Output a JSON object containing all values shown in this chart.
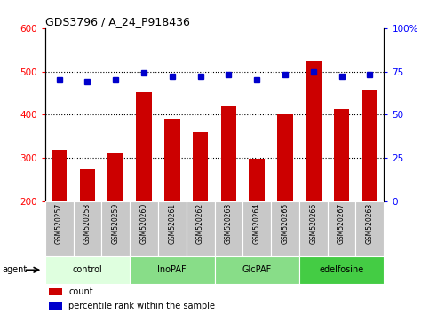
{
  "title": "GDS3796 / A_24_P918436",
  "samples": [
    "GSM520257",
    "GSM520258",
    "GSM520259",
    "GSM520260",
    "GSM520261",
    "GSM520262",
    "GSM520263",
    "GSM520264",
    "GSM520265",
    "GSM520266",
    "GSM520267",
    "GSM520268"
  ],
  "counts": [
    318,
    276,
    310,
    452,
    390,
    360,
    422,
    298,
    402,
    524,
    412,
    456
  ],
  "percentiles": [
    70,
    69,
    70,
    74,
    72,
    72,
    73,
    70,
    73,
    75,
    72,
    73
  ],
  "groups": [
    {
      "label": "control",
      "indices": [
        0,
        1,
        2
      ],
      "color": "#dfffdf"
    },
    {
      "label": "InoPAF",
      "indices": [
        3,
        4,
        5
      ],
      "color": "#88dd88"
    },
    {
      "label": "GlcPAF",
      "indices": [
        6,
        7,
        8
      ],
      "color": "#88dd88"
    },
    {
      "label": "edelfosine",
      "indices": [
        9,
        10,
        11
      ],
      "color": "#44cc44"
    }
  ],
  "bar_color": "#cc0000",
  "dot_color": "#0000cc",
  "ylim_left": [
    200,
    600
  ],
  "ylim_right": [
    0,
    100
  ],
  "yticks_left": [
    200,
    300,
    400,
    500,
    600
  ],
  "yticks_right": [
    0,
    25,
    50,
    75,
    100
  ],
  "grid_values": [
    300,
    400,
    500
  ],
  "legend_count_label": "count",
  "legend_pct_label": "percentile rank within the sample",
  "agent_label": "agent",
  "sample_box_color": "#c8c8c8",
  "background_color": "#ffffff"
}
